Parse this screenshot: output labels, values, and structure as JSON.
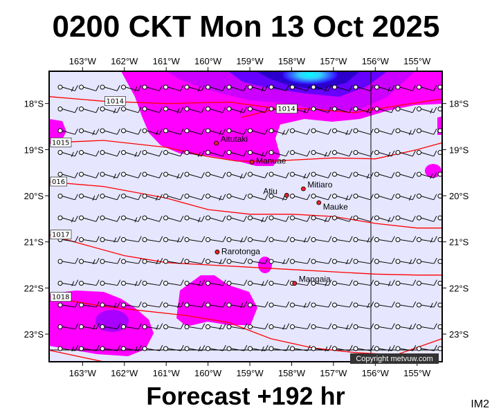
{
  "header": {
    "title": "0200 CKT Mon 13 Oct 2025"
  },
  "footer": {
    "forecast": "Forecast +192 hr",
    "code": "IM2",
    "copyright": "Copyright metvuw.com"
  },
  "map": {
    "lon_min": -163.8,
    "lon_max": -154.4,
    "lat_min": -23.6,
    "lat_max": -17.3,
    "lon_ticks": [
      {
        "value": -163,
        "label": "163°W"
      },
      {
        "value": -162,
        "label": "162°W"
      },
      {
        "value": -161,
        "label": "161°W"
      },
      {
        "value": -160,
        "label": "160°W"
      },
      {
        "value": -159,
        "label": "159°W"
      },
      {
        "value": -158,
        "label": "158°W"
      },
      {
        "value": -157,
        "label": "157°W"
      },
      {
        "value": -156,
        "label": "156°W"
      },
      {
        "value": -155,
        "label": "155°W"
      }
    ],
    "lat_ticks": [
      {
        "value": -18,
        "label": "18°S"
      },
      {
        "value": -19,
        "label": "19°S"
      },
      {
        "value": -20,
        "label": "20°S"
      },
      {
        "value": -21,
        "label": "21°S"
      },
      {
        "value": -22,
        "label": "22°S"
      },
      {
        "value": -23,
        "label": "23°S"
      }
    ],
    "colors": {
      "background": "#e6e6ff",
      "rain_light": "#ff00ff",
      "rain_mid": "#9900ff",
      "rain_heavy": "#3300ff",
      "rain_peak": "#00ffff",
      "isobar": "#ff0000"
    },
    "places": [
      {
        "name": "Aitutaki",
        "lon": -159.8,
        "lat": -18.86
      },
      {
        "name": "Manuae",
        "lon": -158.95,
        "lat": -19.27
      },
      {
        "name": "Atiu",
        "lon": -158.12,
        "lat": -19.99
      },
      {
        "name": "Mitiaro",
        "lon": -157.72,
        "lat": -19.85
      },
      {
        "name": "Mauke",
        "lon": -157.35,
        "lat": -20.15
      },
      {
        "name": "Rarotonga",
        "lon": -159.78,
        "lat": -21.22
      },
      {
        "name": "Mangaia",
        "lon": -157.93,
        "lat": -21.9
      }
    ],
    "isobars": [
      {
        "label": "1014",
        "points": [
          [
            -163.8,
            -17.85
          ],
          [
            -162.5,
            -17.95
          ],
          [
            -161,
            -18.0
          ],
          [
            -159.5,
            -17.97
          ],
          [
            -158.4,
            -18.1
          ],
          [
            -157.5,
            -18.12
          ],
          [
            -156.5,
            -18.2
          ],
          [
            -155.5,
            -18.05
          ],
          [
            -154.4,
            -17.9
          ]
        ]
      },
      {
        "label": "1014",
        "points": [
          [
            -159.2,
            -18.3
          ],
          [
            -158.4,
            -18.12
          ]
        ]
      },
      {
        "label": "1015",
        "points": [
          [
            -163.8,
            -18.85
          ],
          [
            -162.5,
            -18.8
          ],
          [
            -161,
            -18.95
          ],
          [
            -160,
            -19.15
          ],
          [
            -159.3,
            -19.25
          ],
          [
            -158.5,
            -19.25
          ],
          [
            -157,
            -19.18
          ],
          [
            -156,
            -19.2
          ],
          [
            -155,
            -19.0
          ],
          [
            -154.4,
            -18.85
          ]
        ]
      },
      {
        "label": "016",
        "points": [
          [
            -163.8,
            -19.7
          ],
          [
            -162.5,
            -19.8
          ],
          [
            -161,
            -20.05
          ],
          [
            -160,
            -20.3
          ],
          [
            -159,
            -20.4
          ],
          [
            -158,
            -20.4
          ],
          [
            -157,
            -20.45
          ],
          [
            -156,
            -20.6
          ],
          [
            -155,
            -20.7
          ],
          [
            -154.4,
            -20.7
          ]
        ]
      },
      {
        "label": "1017",
        "points": [
          [
            -163.8,
            -20.85
          ],
          [
            -163,
            -21.05
          ],
          [
            -162,
            -21.3
          ],
          [
            -161,
            -21.45
          ],
          [
            -160,
            -21.5
          ],
          [
            -159,
            -21.55
          ],
          [
            -158,
            -21.6
          ],
          [
            -157,
            -21.65
          ],
          [
            -156,
            -21.7
          ],
          [
            -155,
            -21.72
          ],
          [
            -154.4,
            -21.72
          ]
        ]
      },
      {
        "label": "1018",
        "points": [
          [
            -163.8,
            -22.2
          ],
          [
            -162.5,
            -22.4
          ],
          [
            -161.5,
            -22.5
          ],
          [
            -160.5,
            -22.6
          ],
          [
            -159.5,
            -22.75
          ],
          [
            -158.5,
            -23.1
          ],
          [
            -157.5,
            -23.3
          ],
          [
            -156.5,
            -23.4
          ],
          [
            -155.5,
            -23.45
          ],
          [
            -154.4,
            -23.1
          ]
        ]
      },
      {
        "label": "",
        "points": [
          [
            -163.8,
            -23.35
          ],
          [
            -162.5,
            -23.6
          ]
        ]
      }
    ]
  }
}
